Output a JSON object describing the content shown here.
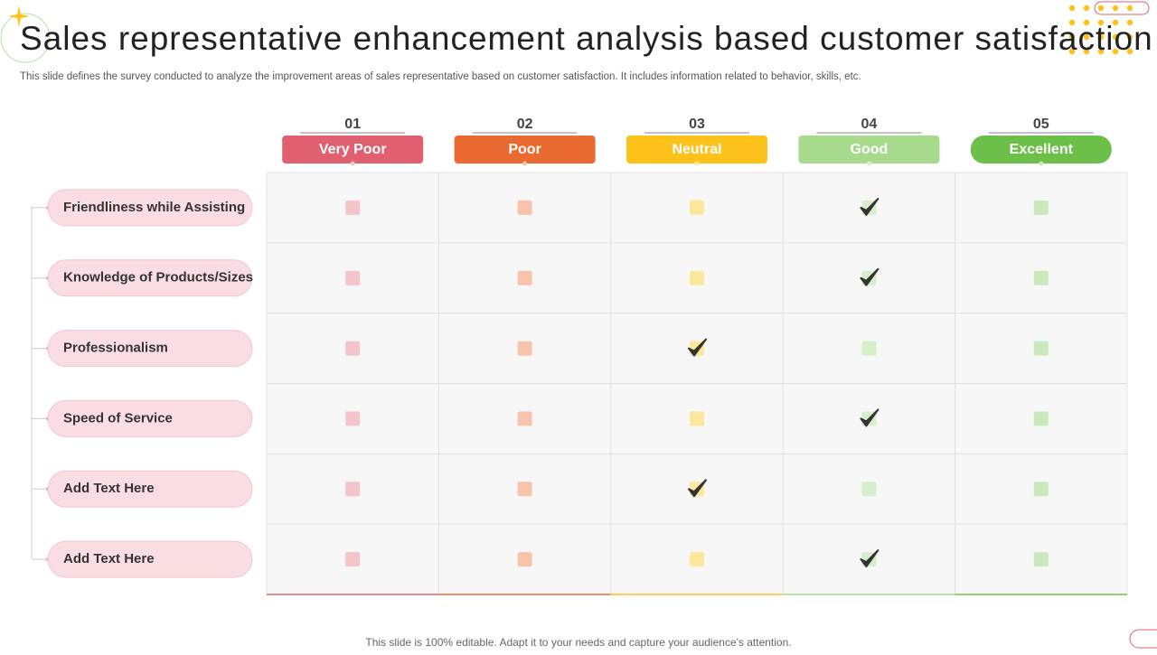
{
  "header": {
    "title": "Sales representative enhancement analysis based customer satisfaction",
    "subtitle": "This slide defines the survey conducted to analyze the improvement areas of sales representative based on customer satisfaction. It includes information related to behavior, skills, etc."
  },
  "table": {
    "columns": [
      {
        "number": "01",
        "label": "Very Poor",
        "color": "#e0606f",
        "light": "#f5c4cb"
      },
      {
        "number": "02",
        "label": "Poor",
        "color": "#ea6a32",
        "light": "#f8c3ab"
      },
      {
        "number": "03",
        "label": "Neutral",
        "color": "#fcc21a",
        "light": "#fde79a"
      },
      {
        "number": "04",
        "label": "Good",
        "color": "#a8da8e",
        "light": "#d6efcb"
      },
      {
        "number": "05",
        "label": "Excellent",
        "color": "#6cc04a",
        "light": "#c9e9bd"
      }
    ],
    "rows": [
      {
        "label": "Friendliness while Assisting",
        "rating": "Good"
      },
      {
        "label": "Knowledge of Products/Sizes",
        "rating": "Good"
      },
      {
        "label": "Professionalism",
        "rating": "Neutral"
      },
      {
        "label": "Speed of Service",
        "rating": "Good"
      },
      {
        "label": "Add Text Here",
        "rating": "Neutral"
      },
      {
        "label": "Add Text Here",
        "rating": "Good"
      }
    ]
  },
  "footer": "This slide is 100% editable. Adapt it to your needs and capture your audience's attention."
}
